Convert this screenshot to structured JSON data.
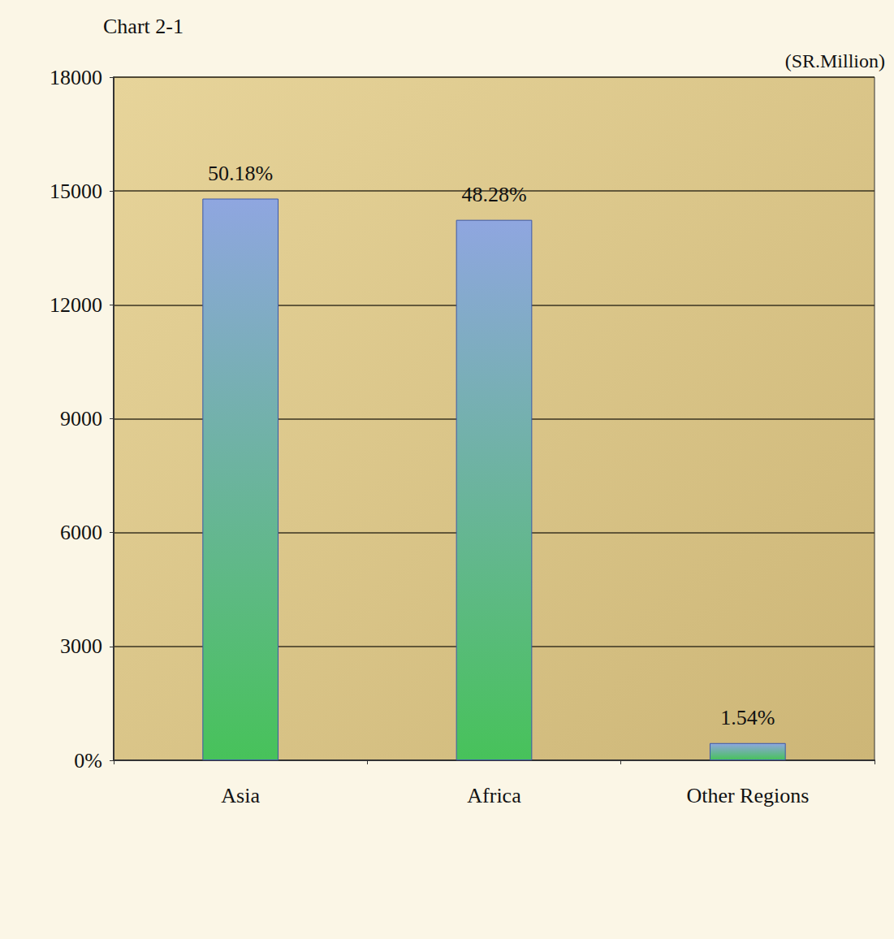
{
  "chart_data": {
    "type": "bar",
    "title": "Chart 2-1",
    "y_label": "(SR.Million)",
    "categories": [
      "Asia",
      "Africa",
      "Other Regions"
    ],
    "values": [
      14800,
      14240,
      454
    ],
    "annotations": [
      "50.18%",
      "48.28%",
      "1.54%"
    ],
    "color": "#8fa6e0",
    "ylim": [
      0,
      18000
    ],
    "yticks": [
      {
        "value": 0,
        "label": "0%"
      },
      3000,
      6000,
      9000,
      12000,
      15000,
      18000
    ],
    "grid": true
  }
}
